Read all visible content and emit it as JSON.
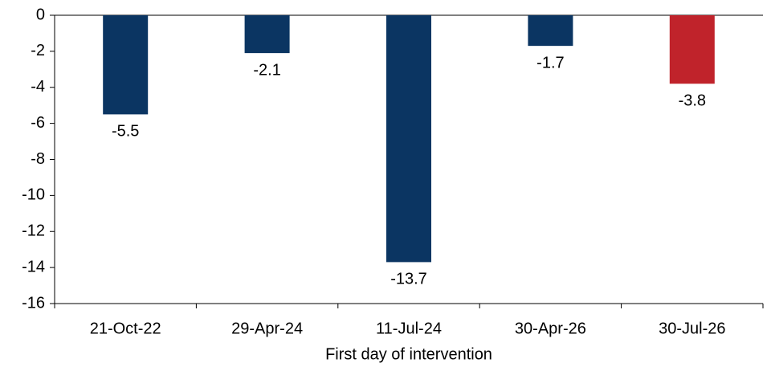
{
  "chart_data": {
    "type": "bar",
    "x_label": "First day of intervention",
    "categories": [
      "21-Oct-22",
      "29-Apr-24",
      "11-Jul-24",
      "30-Apr-26",
      "30-Jul-26"
    ],
    "values": [
      -5.5,
      -2.1,
      -13.7,
      -1.7,
      -3.8
    ],
    "colors": [
      "#0b3562",
      "#0b3562",
      "#0b3562",
      "#0b3562",
      "#c0232b"
    ],
    "ylim": [
      -16,
      0
    ],
    "yticks": [
      0,
      -2,
      -4,
      -6,
      -8,
      -10,
      -12,
      -14,
      -16
    ],
    "grid": false
  }
}
